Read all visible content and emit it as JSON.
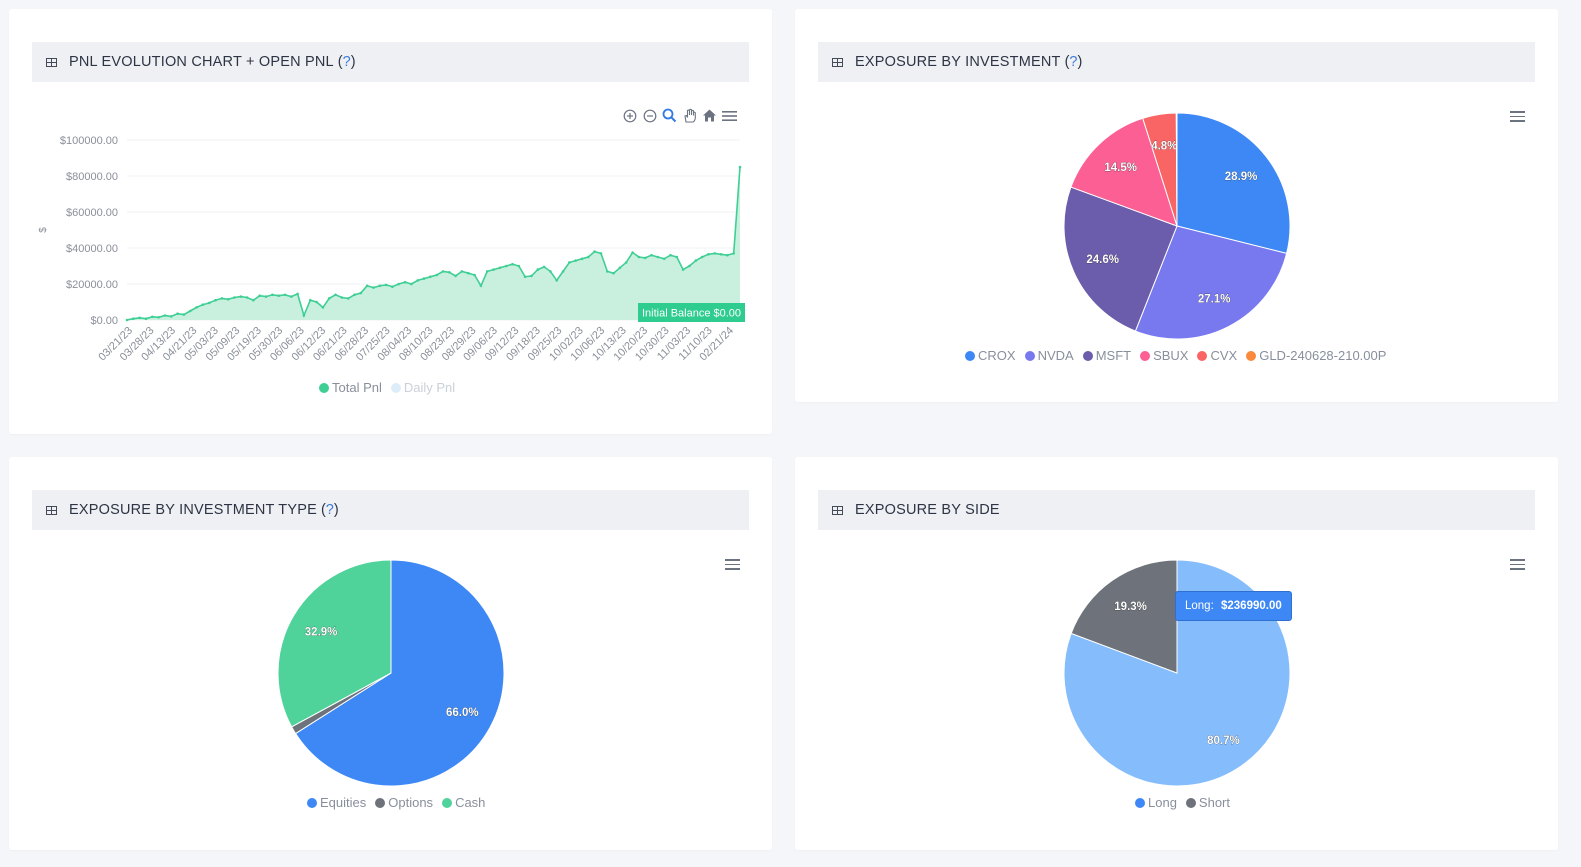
{
  "panels": {
    "pnl": {
      "title": "PNL EVOLUTION CHART + OPEN PNL",
      "help": "?"
    },
    "investment": {
      "title": "EXPOSURE BY INVESTMENT",
      "help": "?"
    },
    "investment_type": {
      "title": "EXPOSURE BY INVESTMENT TYPE",
      "help": "?"
    },
    "side": {
      "title": "EXPOSURE BY SIDE"
    }
  },
  "toolbar_icons": [
    "zoom-in-icon",
    "zoom-out-icon",
    "zoom-selection-icon",
    "pan-icon",
    "home-icon",
    "menu-icon"
  ],
  "colors": {
    "total_pnl": "#3fcf94",
    "total_pnl_fill": "#c9f0df",
    "daily_pnl": "#d6eef5",
    "accent_blue": "#3d88f5",
    "annotation_bg": "#2ecc8e"
  },
  "chart_data": [
    {
      "type": "area",
      "ylabel": "$",
      "ylim": [
        0,
        100000
      ],
      "y_ticks": [
        "$0.00",
        "$20000.00",
        "$40000.00",
        "$60000.00",
        "$80000.00",
        "$100000.00"
      ],
      "x_tick_labels": [
        "03/21/23",
        "03/28/23",
        "04/13/23",
        "04/21/23",
        "05/03/23",
        "05/09/23",
        "05/19/23",
        "05/30/23",
        "06/06/23",
        "06/12/23",
        "06/21/23",
        "06/28/23",
        "07/25/23",
        "08/04/23",
        "08/10/23",
        "08/23/23",
        "08/29/23",
        "09/06/23",
        "09/12/23",
        "09/18/23",
        "09/25/23",
        "10/02/23",
        "10/06/23",
        "10/13/23",
        "10/20/23",
        "10/30/23",
        "11/03/23",
        "11/10/23",
        "02/21/24"
      ],
      "series": [
        {
          "name": "Total Pnl",
          "color": "#3fcf94",
          "values": [
            0,
            700,
            1200,
            700,
            1800,
            1500,
            2500,
            2000,
            3500,
            3000,
            5000,
            7000,
            8500,
            9500,
            11000,
            12000,
            11500,
            12500,
            13000,
            12500,
            11000,
            13500,
            13000,
            14000,
            13500,
            14000,
            13000,
            14500,
            2500,
            11000,
            10000,
            7000,
            12000,
            14000,
            12500,
            12000,
            14000,
            15000,
            19000,
            18000,
            19000,
            19500,
            18500,
            20000,
            21000,
            20000,
            22000,
            23000,
            24000,
            25000,
            27000,
            26500,
            24500,
            27000,
            26000,
            25000,
            19000,
            27000,
            28000,
            29000,
            30000,
            31000,
            30000,
            24000,
            24500,
            28000,
            29500,
            27000,
            22000,
            27000,
            32000,
            33000,
            34000,
            35000,
            38000,
            37000,
            27000,
            26000,
            29000,
            32000,
            37500,
            35000,
            34500,
            36000,
            35000,
            34000,
            36000,
            35000,
            28000,
            30000,
            33000,
            35000,
            36500,
            37000,
            36500,
            36000,
            37000,
            85000
          ]
        },
        {
          "name": "Daily Pnl",
          "color": "#d6eef5",
          "values": []
        }
      ],
      "annotations": [
        {
          "text": "Initial Balance $0.00",
          "y": 0
        }
      ],
      "legend": "bottom"
    },
    {
      "type": "pie",
      "slices": [
        {
          "label": "CROX",
          "value": 28.9,
          "text": "28.9%",
          "color": "#3d88f5"
        },
        {
          "label": "NVDA",
          "value": 27.1,
          "text": "27.1%",
          "color": "#7879ef"
        },
        {
          "label": "MSFT",
          "value": 24.6,
          "text": "24.6%",
          "color": "#6b5cac"
        },
        {
          "label": "SBUX",
          "value": 14.5,
          "text": "14.5%",
          "color": "#fc5f94"
        },
        {
          "label": "CVX",
          "value": 4.8,
          "text": "4.8%",
          "color": "#f96464"
        },
        {
          "label": "GLD-240628-210.00P",
          "value": 0.1,
          "text": "",
          "color": "#f98a3c"
        }
      ],
      "legend": "bottom"
    },
    {
      "type": "pie",
      "slices": [
        {
          "label": "Equities",
          "value": 66.0,
          "text": "66.0%",
          "color": "#3d88f5"
        },
        {
          "label": "Options",
          "value": 1.1,
          "text": "",
          "color": "#6d727b"
        },
        {
          "label": "Cash",
          "value": 32.9,
          "text": "32.9%",
          "color": "#4fd39b"
        }
      ],
      "legend": "bottom"
    },
    {
      "type": "pie",
      "slices": [
        {
          "label": "Long",
          "value": 80.7,
          "text": "80.7%",
          "color": "#85bdfc",
          "legend_color": "#3d88f5"
        },
        {
          "label": "Short",
          "value": 19.3,
          "text": "19.3%",
          "color": "#6d727b",
          "legend_color": "#6d727b"
        }
      ],
      "tooltip": {
        "label": "Long:",
        "value": "$236990.00"
      },
      "legend": "bottom"
    }
  ]
}
